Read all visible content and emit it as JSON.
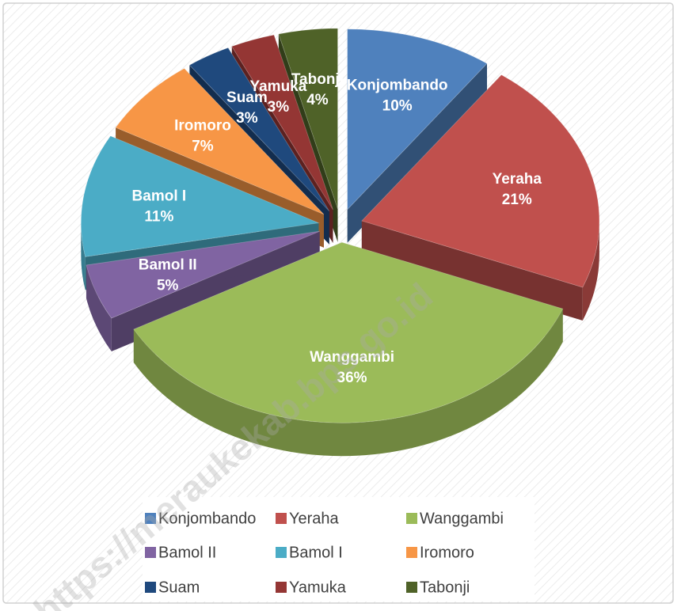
{
  "chart_data": {
    "type": "pie3d",
    "categories": [
      "Konjombando",
      "Yeraha",
      "Wanggambi",
      "Bamol II",
      "Bamol I",
      "Iromoro",
      "Suam",
      "Yamuka",
      "Tabonji"
    ],
    "values": [
      10,
      21,
      36,
      5,
      11,
      7,
      3,
      3,
      4
    ],
    "value_labels": [
      "10%",
      "21%",
      "36%",
      "5%",
      "11%",
      "7%",
      "3%",
      "3%",
      "4%"
    ],
    "colors": [
      "#4f81bd",
      "#c0504d",
      "#9bbb59",
      "#8064a2",
      "#4bacc6",
      "#f79646",
      "#1f497d",
      "#943634",
      "#4f6228"
    ],
    "legend": "bottom",
    "watermark": "https://meraukekab.bps.go.id"
  }
}
